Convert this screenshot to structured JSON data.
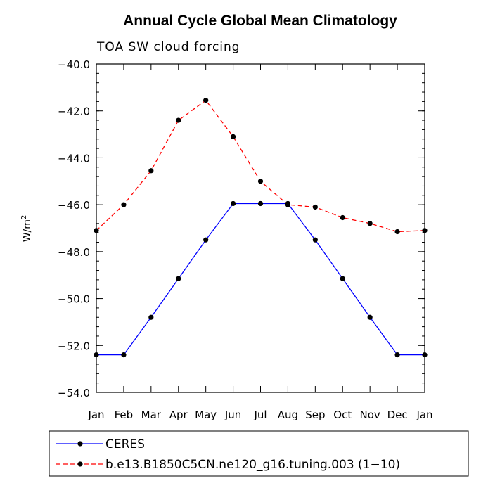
{
  "chart_data": {
    "type": "line",
    "title": "Annual Cycle Global Mean Climatology",
    "subtitle": "TOA SW cloud forcing",
    "ylabel": "W/m",
    "ylabel_sup": "2",
    "ylim": [
      -54.0,
      -40.0
    ],
    "yticks": [
      -40.0,
      -42.0,
      -44.0,
      -46.0,
      -48.0,
      -50.0,
      -52.0,
      -54.0
    ],
    "ytick_labels": [
      "−40.0",
      "−42.0",
      "−44.0",
      "−46.0",
      "−48.0",
      "−50.0",
      "−52.0",
      "−54.0"
    ],
    "categories": [
      "Jan",
      "Feb",
      "Mar",
      "Apr",
      "May",
      "Jun",
      "Jul",
      "Aug",
      "Sep",
      "Oct",
      "Nov",
      "Dec",
      "Jan"
    ],
    "series": [
      {
        "name": "CERES",
        "color": "#0000ff",
        "dash": "solid",
        "values": [
          -52.4,
          -52.4,
          -50.8,
          -49.15,
          -47.5,
          -45.95,
          -45.95,
          -45.95,
          -47.5,
          -49.15,
          -50.8,
          -52.4,
          -52.4
        ]
      },
      {
        "name": "b.e13.B1850C5CN.ne120_g16.tuning.003 (1−10)",
        "color": "#ff0000",
        "dash": "dashed",
        "values": [
          -47.1,
          -46.0,
          -44.55,
          -42.4,
          -41.55,
          -43.1,
          -45.0,
          -46.0,
          -46.1,
          -46.55,
          -46.8,
          -47.15,
          -47.1
        ]
      }
    ],
    "legend_position": "bottom",
    "marker_color": "#000000"
  }
}
